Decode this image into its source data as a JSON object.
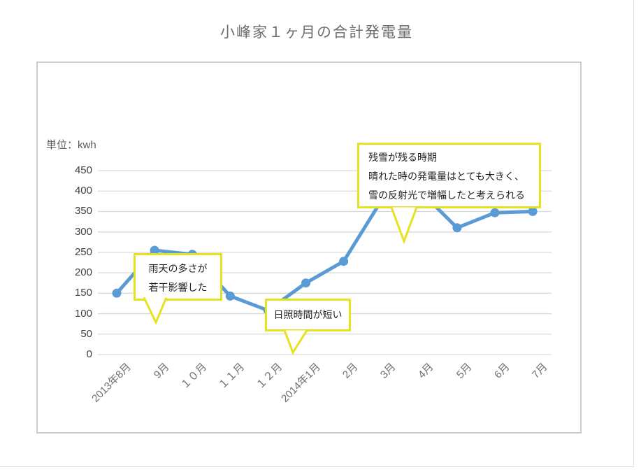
{
  "title": "小峰家１ヶ月の合計発電量",
  "unit_label": "単位：kwh",
  "chart_data": {
    "type": "line",
    "title": "小峰家１ヶ月の合計発電量",
    "ylabel": "単位：kwh",
    "categories": [
      "2013年8月",
      "9月",
      "１０月",
      "１１月",
      "１２月",
      "2014年1月",
      "2月",
      "3月",
      "4月",
      "5月",
      "6月",
      "7月"
    ],
    "values": [
      150,
      255,
      245,
      143,
      108,
      175,
      228,
      377,
      402,
      310,
      347,
      350
    ],
    "ylim": [
      0,
      450
    ],
    "yticks": [
      0,
      50,
      100,
      150,
      200,
      250,
      300,
      350,
      400,
      450
    ],
    "grid": true,
    "legend": false,
    "line_color": "#5B9BD5",
    "gridline_color": "#D9D9D9",
    "annotation_border_color": "#E5E221"
  },
  "annotations": [
    {
      "lines": [
        "雨天の多さが",
        "若干影響した"
      ]
    },
    {
      "lines": [
        "日照時間が短い"
      ]
    },
    {
      "lines": [
        "残雪が残る時期",
        "晴れた時の発電量はとても大きく、",
        "雪の反射光で増幅したと考えられる"
      ]
    }
  ]
}
